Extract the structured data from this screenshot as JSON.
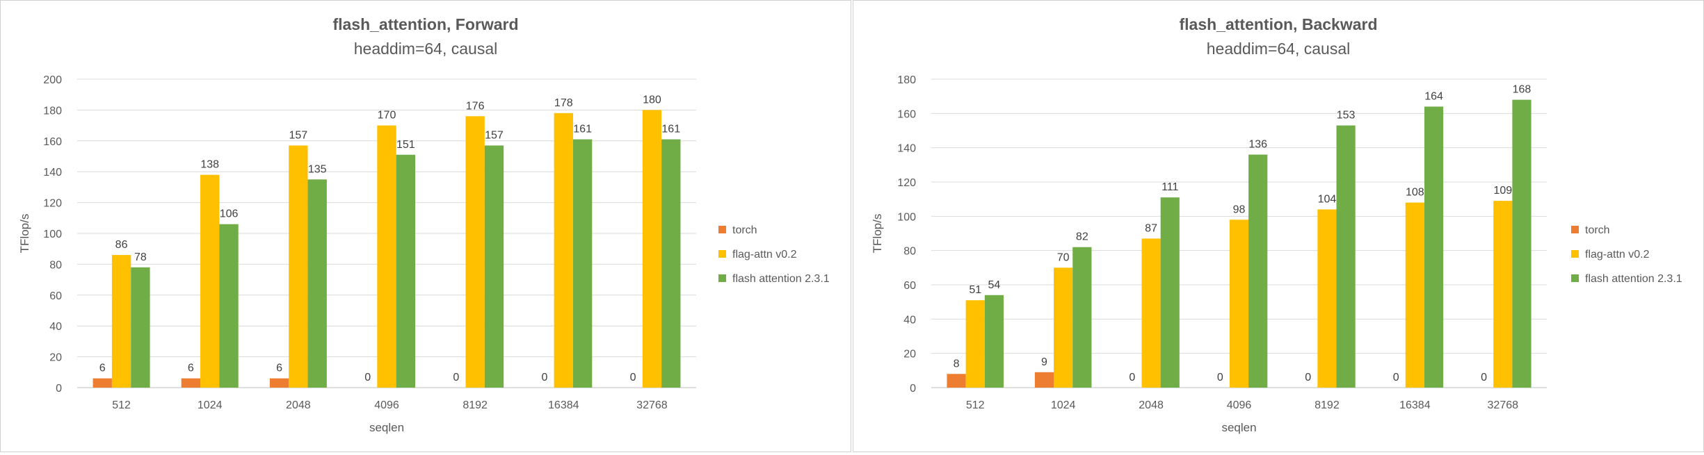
{
  "chart_data": [
    {
      "type": "bar",
      "title": "flash_attention, Forward",
      "subtitle": "headdim=64, causal",
      "xlabel": "seqlen",
      "ylabel": "TFlop/s",
      "ylim": [
        0,
        200
      ],
      "yticks": [
        "0",
        "20",
        "40",
        "60",
        "80",
        "100",
        "120",
        "140",
        "160",
        "180",
        "200"
      ],
      "categories": [
        "512",
        "1024",
        "2048",
        "4096",
        "8192",
        "16384",
        "32768"
      ],
      "legend_position": "right",
      "series": [
        {
          "name": "torch",
          "color": "#ed7d31",
          "values": [
            6,
            6,
            6,
            0,
            0,
            0,
            0
          ],
          "labels": [
            "6",
            "6",
            "6",
            "0",
            "0",
            "0",
            "0"
          ]
        },
        {
          "name": "flag-attn v0.2",
          "color": "#ffc000",
          "values": [
            86,
            138,
            157,
            170,
            176,
            178,
            180
          ],
          "labels": [
            "86",
            "138",
            "157",
            "170",
            "176",
            "178",
            "180"
          ]
        },
        {
          "name": "flash attention 2.3.1",
          "color": "#70ad47",
          "values": [
            78,
            106,
            135,
            151,
            157,
            161,
            161
          ],
          "labels": [
            "78",
            "106",
            "135",
            "151",
            "157",
            "161",
            "161"
          ]
        }
      ]
    },
    {
      "type": "bar",
      "title": "flash_attention, Backward",
      "subtitle": "headdim=64, causal",
      "xlabel": "seqlen",
      "ylabel": "TFlop/s",
      "ylim": [
        0,
        180
      ],
      "yticks": [
        "0",
        "20",
        "40",
        "60",
        "80",
        "100",
        "120",
        "140",
        "160",
        "180"
      ],
      "categories": [
        "512",
        "1024",
        "2048",
        "4096",
        "8192",
        "16384",
        "32768"
      ],
      "legend_position": "right",
      "series": [
        {
          "name": "torch",
          "color": "#ed7d31",
          "values": [
            8,
            9,
            0,
            0,
            0,
            0,
            0
          ],
          "labels": [
            "8",
            "9",
            "0",
            "0",
            "0",
            "0",
            "0"
          ]
        },
        {
          "name": "flag-attn v0.2",
          "color": "#ffc000",
          "values": [
            51,
            70,
            87,
            98,
            104,
            108,
            109
          ],
          "labels": [
            "51",
            "70",
            "87",
            "98",
            "104",
            "108",
            "109"
          ]
        },
        {
          "name": "flash attention 2.3.1",
          "color": "#70ad47",
          "values": [
            54,
            82,
            111,
            136,
            153,
            164,
            168
          ],
          "labels": [
            "54",
            "82",
            "111",
            "136",
            "153",
            "164",
            "168"
          ]
        }
      ]
    }
  ]
}
